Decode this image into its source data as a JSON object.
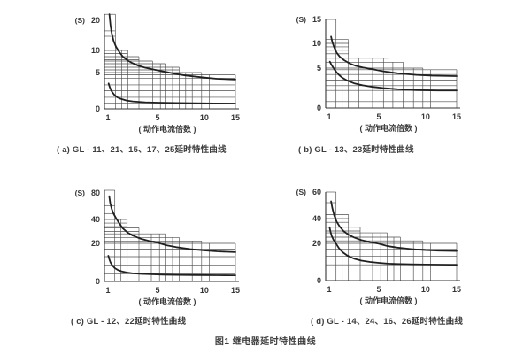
{
  "page": {
    "figure_title": "图1  继电器延时特性曲线"
  },
  "chart_data": [
    {
      "type": "line",
      "panel": "a",
      "caption": "( a) GL - 11、21、15、17、25延时特性曲线",
      "unit": "(S)",
      "xlabel": "( 动作电流倍数 )",
      "xlim": [
        1,
        15
      ],
      "ylim": [
        0,
        22
      ],
      "grid": true,
      "xticks": [
        {
          "v": 1,
          "f": 0.026
        },
        {
          "v": 5,
          "f": 0.395
        },
        {
          "v": 10,
          "f": 0.743
        },
        {
          "v": 15,
          "f": 0.974
        }
      ],
      "yticks": [
        {
          "v": 0,
          "f": 0
        },
        {
          "v": 5,
          "f": 0.41
        },
        {
          "v": 10,
          "f": 0.66
        },
        {
          "v": 20,
          "f": 1.0
        }
      ],
      "grid_vlines": [
        [
          1.6,
          22
        ],
        [
          2.1,
          10
        ],
        [
          2.6,
          10
        ],
        [
          3.5,
          8.6
        ],
        [
          4.6,
          7.6
        ],
        [
          5.3,
          7
        ],
        [
          5.9,
          7
        ],
        [
          6.6,
          6.2
        ],
        [
          7.3,
          6.2
        ],
        [
          8,
          5
        ],
        [
          8.7,
          5
        ],
        [
          9.7,
          5
        ],
        [
          10.8,
          4.7
        ],
        [
          15,
          4.7
        ]
      ],
      "grid_hlines": [
        [
          22,
          1.6
        ],
        [
          16.5,
          1.6
        ],
        [
          14.7,
          1.6
        ],
        [
          10,
          2.6
        ],
        [
          9.3,
          2.6
        ],
        [
          8.6,
          3.5
        ],
        [
          7.9,
          3.5
        ],
        [
          7.6,
          4.6
        ],
        [
          7,
          5.9
        ],
        [
          6.2,
          7.3
        ],
        [
          5.6,
          7.3
        ],
        [
          5,
          9.7
        ],
        [
          4.7,
          15
        ],
        [
          4.2,
          15
        ],
        [
          3.3,
          15
        ],
        [
          2.5,
          15
        ],
        [
          1.6,
          15
        ],
        [
          0.8,
          15
        ]
      ],
      "series": [
        {
          "name": "upper-limit-curve",
          "points": [
            [
              1.12,
              22
            ],
            [
              1.2,
              18.5
            ],
            [
              1.3,
              15.8
            ],
            [
              1.45,
              13.2
            ],
            [
              1.65,
              11.2
            ],
            [
              1.9,
              9.7
            ],
            [
              2.2,
              8.6
            ],
            [
              2.6,
              7.7
            ],
            [
              3,
              7.1
            ],
            [
              3.5,
              6.5
            ],
            [
              4,
              6.1
            ],
            [
              5,
              5.5
            ],
            [
              6,
              5.1
            ],
            [
              7,
              4.8
            ],
            [
              8,
              4.6
            ],
            [
              10,
              4.3
            ],
            [
              12,
              4.15
            ],
            [
              15,
              4.05
            ]
          ]
        },
        {
          "name": "lower-limit-curve",
          "points": [
            [
              1.05,
              3.5
            ],
            [
              1.15,
              2.95
            ],
            [
              1.3,
              2.4
            ],
            [
              1.5,
              1.95
            ],
            [
              1.75,
              1.6
            ],
            [
              2,
              1.4
            ],
            [
              2.5,
              1.15
            ],
            [
              3,
              1.02
            ],
            [
              4,
              0.9
            ],
            [
              5,
              0.85
            ],
            [
              7,
              0.8
            ],
            [
              10,
              0.75
            ],
            [
              15,
              0.72
            ]
          ]
        }
      ]
    },
    {
      "type": "line",
      "panel": "b",
      "caption": "( b) GL - 13、23延时特性曲线",
      "unit": "(S)",
      "xlabel": "( 动作电流倍数 )",
      "xlim": [
        1,
        15
      ],
      "ylim": [
        0,
        15
      ],
      "grid": true,
      "xticks": [
        {
          "v": 1,
          "f": 0.026
        },
        {
          "v": 5,
          "f": 0.395
        },
        {
          "v": 10,
          "f": 0.743
        },
        {
          "v": 15,
          "f": 0.974
        }
      ],
      "yticks": [
        {
          "v": 0,
          "f": 0
        },
        {
          "v": 5,
          "f": 0.45
        },
        {
          "v": 10,
          "f": 0.73
        },
        {
          "v": 15,
          "f": 1.0
        }
      ],
      "grid_vlines": [
        [
          1.55,
          15
        ],
        [
          2.05,
          10.8
        ],
        [
          2.55,
          10.8
        ],
        [
          3.4,
          7
        ],
        [
          4.5,
          7
        ],
        [
          5.5,
          7
        ],
        [
          6.5,
          6.2
        ],
        [
          7.6,
          6.2
        ],
        [
          8.7,
          5
        ],
        [
          9.7,
          5
        ],
        [
          10.8,
          4.8
        ],
        [
          15,
          4.8
        ]
      ],
      "grid_hlines": [
        [
          15,
          1.55
        ],
        [
          10.8,
          2.55
        ],
        [
          10,
          2.55
        ],
        [
          9.3,
          2.55
        ],
        [
          8.6,
          2.55
        ],
        [
          7.9,
          2.55
        ],
        [
          7,
          6
        ],
        [
          6.2,
          7.6
        ],
        [
          5.6,
          7.6
        ],
        [
          5,
          9.7
        ],
        [
          4.8,
          15
        ],
        [
          4.2,
          15
        ],
        [
          3.5,
          15
        ],
        [
          2.8,
          15
        ],
        [
          2.2,
          15
        ],
        [
          1.5,
          15
        ],
        [
          0.8,
          15
        ]
      ],
      "series": [
        {
          "name": "upper-limit-curve",
          "points": [
            [
              1.15,
              11.4
            ],
            [
              1.25,
              10.3
            ],
            [
              1.4,
              9.2
            ],
            [
              1.6,
              8.1
            ],
            [
              1.85,
              7.3
            ],
            [
              2.2,
              6.6
            ],
            [
              2.6,
              6
            ],
            [
              3.1,
              5.5
            ],
            [
              3.7,
              5.15
            ],
            [
              4.5,
              4.85
            ],
            [
              5.5,
              4.6
            ],
            [
              7,
              4.35
            ],
            [
              9,
              4.15
            ],
            [
              11,
              4.05
            ],
            [
              15,
              4
            ]
          ]
        },
        {
          "name": "lower-limit-curve",
          "points": [
            [
              1.05,
              6.3
            ],
            [
              1.15,
              5.8
            ],
            [
              1.3,
              5.2
            ],
            [
              1.5,
              4.65
            ],
            [
              1.75,
              4.2
            ],
            [
              2.05,
              3.8
            ],
            [
              2.45,
              3.45
            ],
            [
              3,
              3.1
            ],
            [
              3.7,
              2.85
            ],
            [
              4.5,
              2.65
            ],
            [
              5.5,
              2.5
            ],
            [
              7,
              2.35
            ],
            [
              9,
              2.25
            ],
            [
              12,
              2.2
            ],
            [
              15,
              2.2
            ]
          ]
        }
      ]
    },
    {
      "type": "line",
      "panel": "c",
      "caption": "( c) GL - 12、22延时特性曲线",
      "unit": "(S)",
      "xlabel": "( 动作电流倍数 )",
      "xlim": [
        1,
        15
      ],
      "ylim": [
        0,
        84
      ],
      "grid": true,
      "xticks": [
        {
          "v": 1,
          "f": 0.026
        },
        {
          "v": 5,
          "f": 0.395
        },
        {
          "v": 10,
          "f": 0.743
        },
        {
          "v": 15,
          "f": 0.974
        }
      ],
      "yticks": [
        {
          "v": 0,
          "f": 0
        },
        {
          "v": 20,
          "f": 0.43
        },
        {
          "v": 40,
          "f": 0.7
        },
        {
          "v": 80,
          "f": 1.0
        }
      ],
      "grid_vlines": [
        [
          1.55,
          84
        ],
        [
          2.05,
          40
        ],
        [
          2.55,
          40
        ],
        [
          3.5,
          33
        ],
        [
          4.5,
          28
        ],
        [
          5.2,
          28
        ],
        [
          5.9,
          28
        ],
        [
          6.6,
          25
        ],
        [
          7.3,
          25
        ],
        [
          8.7,
          22
        ],
        [
          9.7,
          22
        ],
        [
          10.8,
          20
        ],
        [
          15,
          20
        ]
      ],
      "grid_hlines": [
        [
          84,
          1.55
        ],
        [
          61,
          1.55
        ],
        [
          49,
          1.55
        ],
        [
          40,
          2.55
        ],
        [
          37,
          2.55
        ],
        [
          34,
          2.55
        ],
        [
          33,
          3.5
        ],
        [
          30,
          3.5
        ],
        [
          28,
          5.9
        ],
        [
          25,
          7.3
        ],
        [
          22,
          9.7
        ],
        [
          20,
          15
        ],
        [
          17,
          15
        ],
        [
          13,
          15
        ],
        [
          8.5,
          15
        ],
        [
          4,
          15
        ]
      ],
      "series": [
        {
          "name": "upper-limit-curve",
          "points": [
            [
              1.1,
              75
            ],
            [
              1.18,
              65
            ],
            [
              1.3,
              56
            ],
            [
              1.45,
              48.5
            ],
            [
              1.65,
              42
            ],
            [
              1.9,
              37
            ],
            [
              2.2,
              32.5
            ],
            [
              2.6,
              29
            ],
            [
              3,
              26.5
            ],
            [
              3.6,
              24
            ],
            [
              4.3,
              22
            ],
            [
              5,
              20.5
            ],
            [
              6,
              19
            ],
            [
              7,
              18
            ],
            [
              8.5,
              17
            ],
            [
              10,
              16.3
            ],
            [
              12,
              15.8
            ],
            [
              15,
              15.4
            ]
          ]
        },
        {
          "name": "lower-limit-curve",
          "points": [
            [
              1.03,
              13.5
            ],
            [
              1.1,
              11.8
            ],
            [
              1.2,
              10
            ],
            [
              1.35,
              8.4
            ],
            [
              1.55,
              7
            ],
            [
              1.8,
              6
            ],
            [
              2.1,
              5.3
            ],
            [
              2.5,
              4.7
            ],
            [
              3,
              4.25
            ],
            [
              3.7,
              3.95
            ],
            [
              4.5,
              3.75
            ],
            [
              5.5,
              3.6
            ],
            [
              7,
              3.45
            ],
            [
              9,
              3.35
            ],
            [
              12,
              3.25
            ],
            [
              15,
              3.2
            ]
          ]
        }
      ]
    },
    {
      "type": "line",
      "panel": "d",
      "caption": "( d) GL - 14、24、16、26延时特性曲线",
      "unit": "(S)",
      "xlabel": "( 动作电流倍数 )",
      "xlim": [
        1,
        15
      ],
      "ylim": [
        0,
        60
      ],
      "grid": true,
      "xticks": [
        {
          "v": 1,
          "f": 0.026
        },
        {
          "v": 5,
          "f": 0.395
        },
        {
          "v": 10,
          "f": 0.743
        },
        {
          "v": 15,
          "f": 0.974
        }
      ],
      "yticks": [
        {
          "v": 0,
          "f": 0
        },
        {
          "v": 20,
          "f": 0.42
        },
        {
          "v": 40,
          "f": 0.7
        },
        {
          "v": 60,
          "f": 1.0
        }
      ],
      "grid_vlines": [
        [
          1.55,
          60
        ],
        [
          2.05,
          43
        ],
        [
          2.55,
          43
        ],
        [
          3.5,
          33
        ],
        [
          4.5,
          28.5
        ],
        [
          5.2,
          28.5
        ],
        [
          5.9,
          28.5
        ],
        [
          6.6,
          25
        ],
        [
          7.3,
          25
        ],
        [
          8.7,
          22
        ],
        [
          9.7,
          22
        ],
        [
          10.8,
          20
        ],
        [
          15,
          20
        ]
      ],
      "grid_hlines": [
        [
          60,
          1.55
        ],
        [
          52,
          1.55
        ],
        [
          43,
          2.55
        ],
        [
          40,
          2.55
        ],
        [
          37,
          2.55
        ],
        [
          33,
          3.5
        ],
        [
          30,
          3.5
        ],
        [
          28.5,
          5.9
        ],
        [
          25,
          7.3
        ],
        [
          22,
          9.7
        ],
        [
          20,
          15
        ],
        [
          17,
          15
        ],
        [
          13,
          15
        ],
        [
          8.5,
          15
        ],
        [
          4,
          15
        ]
      ],
      "series": [
        {
          "name": "upper-limit-curve",
          "points": [
            [
              1.15,
              53
            ],
            [
              1.25,
              48
            ],
            [
              1.4,
              42.5
            ],
            [
              1.6,
              37.5
            ],
            [
              1.85,
              33.5
            ],
            [
              2.15,
              30
            ],
            [
              2.55,
              27
            ],
            [
              3,
              24.8
            ],
            [
              3.6,
              22.6
            ],
            [
              4.3,
              21
            ],
            [
              5,
              19.8
            ],
            [
              6,
              18.5
            ],
            [
              7,
              17.7
            ],
            [
              8.5,
              16.9
            ],
            [
              10,
              16.4
            ],
            [
              12,
              16.1
            ],
            [
              15,
              15.9
            ]
          ]
        },
        {
          "name": "lower-limit-curve",
          "points": [
            [
              1.03,
              33
            ],
            [
              1.1,
              29.5
            ],
            [
              1.2,
              26
            ],
            [
              1.35,
              22.8
            ],
            [
              1.55,
              19.8
            ],
            [
              1.8,
              17.3
            ],
            [
              2.1,
              15.2
            ],
            [
              2.5,
              13.3
            ],
            [
              3,
              11.8
            ],
            [
              3.6,
              10.7
            ],
            [
              4.3,
              10
            ],
            [
              5,
              9.5
            ],
            [
              6,
              9.1
            ],
            [
              7,
              8.9
            ],
            [
              8.5,
              8.7
            ],
            [
              10,
              8.6
            ],
            [
              12,
              8.55
            ],
            [
              15,
              8.5
            ]
          ]
        }
      ]
    }
  ]
}
